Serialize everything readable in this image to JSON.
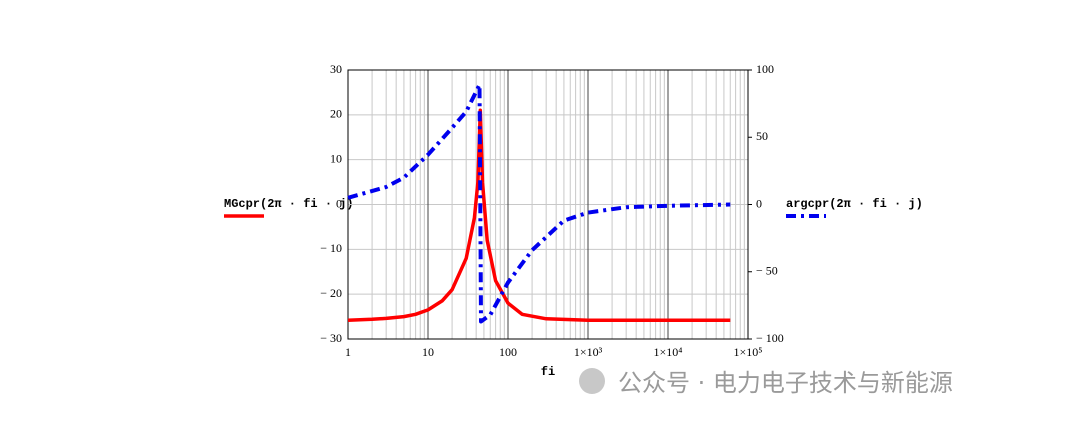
{
  "chart_data": {
    "type": "line",
    "x_label": "fi",
    "xscale": "log",
    "xlim": [
      1,
      100000
    ],
    "xticks": [
      1,
      10,
      100,
      {
        "value": 1000,
        "label": "1×10³"
      },
      {
        "value": 10000,
        "label": "1×10⁴"
      },
      {
        "value": 100000,
        "label": "1×10⁵"
      }
    ],
    "ylim": [
      -30,
      30
    ],
    "yticks": [
      30,
      20,
      10,
      0,
      {
        "value": -10,
        "label": "− 10"
      },
      {
        "value": -20,
        "label": "− 20"
      },
      {
        "value": -30,
        "label": "− 30"
      }
    ],
    "y2lim": [
      -100,
      100
    ],
    "y2ticks": [
      100,
      50,
      0,
      {
        "value": -50,
        "label": "− 50"
      },
      {
        "value": -100,
        "label": "− 100"
      }
    ],
    "grid": true,
    "series": [
      {
        "name": "MGcpr(2π · fi · j)",
        "color": "#ff0000",
        "axis": "y",
        "x": [
          1,
          2,
          3,
          5,
          7,
          10,
          15,
          20,
          30,
          38,
          42,
          45,
          48,
          55,
          70,
          100,
          150,
          300,
          1000,
          60000
        ],
        "values": [
          -25.8,
          -25.6,
          -25.4,
          -25,
          -24.5,
          -23.5,
          -21.5,
          -19,
          -12,
          -3,
          5,
          21,
          5,
          -8,
          -17,
          -22,
          -24.5,
          -25.5,
          -25.8,
          -25.8
        ]
      },
      {
        "name": "argcpr(2π · fi · j)",
        "color": "#0000ee",
        "axis": "y2",
        "x": [
          1,
          3,
          5,
          10,
          20,
          30,
          44,
          45,
          46,
          60,
          100,
          200,
          500,
          1000,
          3000,
          10000,
          60000
        ],
        "values": [
          5,
          13,
          20,
          37,
          57,
          69,
          89,
          0,
          -87,
          -82,
          -58,
          -34,
          -12,
          -6,
          -2,
          -1,
          0
        ]
      }
    ]
  },
  "watermark": "公众号 · 电力电子技术与新能源"
}
